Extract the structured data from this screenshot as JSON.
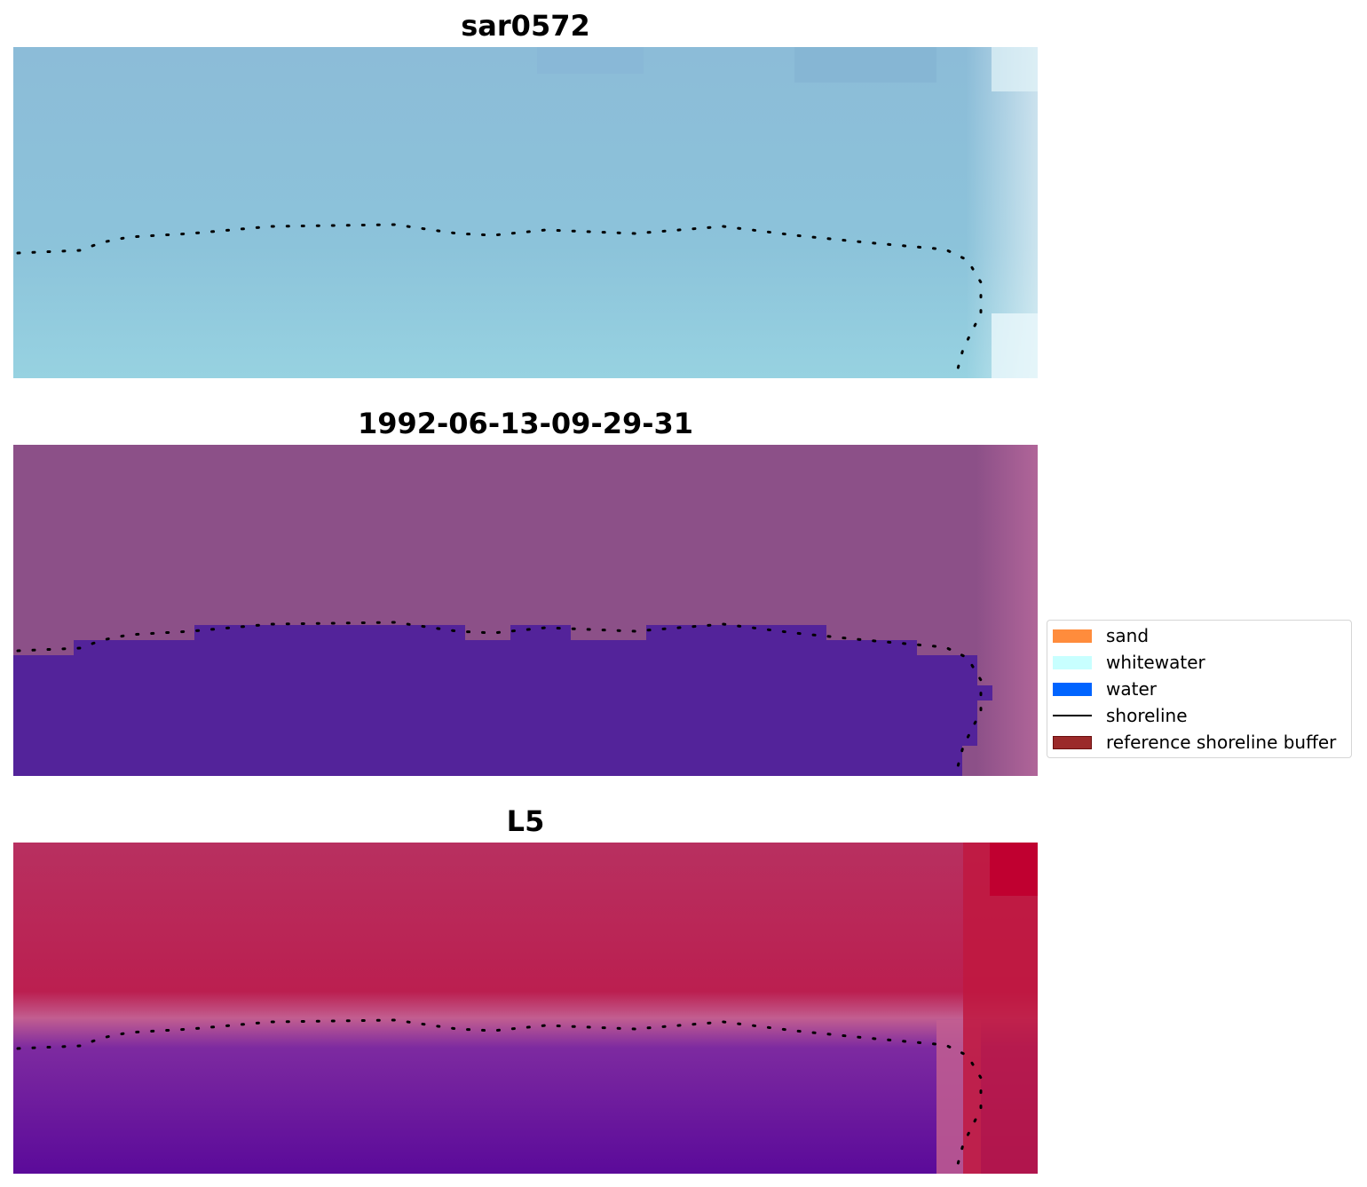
{
  "panels": [
    {
      "title": "sar0572",
      "kind": "rgb",
      "background": "#8ec3d9"
    },
    {
      "title": "1992-06-13-09-29-31",
      "kind": "classified",
      "land_color": "#8c5088",
      "water_color": "#53239a"
    },
    {
      "title": "L5",
      "kind": "mndwi",
      "land_color": "#bd2353",
      "water_color": "#5c0b99"
    }
  ],
  "legend": {
    "items": [
      {
        "label": "sand",
        "color": "#ff8c3c",
        "kind": "patch"
      },
      {
        "label": "whitewater",
        "color": "#c8ffff",
        "kind": "patch"
      },
      {
        "label": "water",
        "color": "#0064ff",
        "kind": "patch"
      },
      {
        "label": "shoreline",
        "color": "#000000",
        "kind": "line"
      },
      {
        "label": "reference shoreline buffer",
        "color": "#9b2a2a",
        "kind": "patch-outlined"
      }
    ]
  },
  "shoreline_color": "#000000"
}
